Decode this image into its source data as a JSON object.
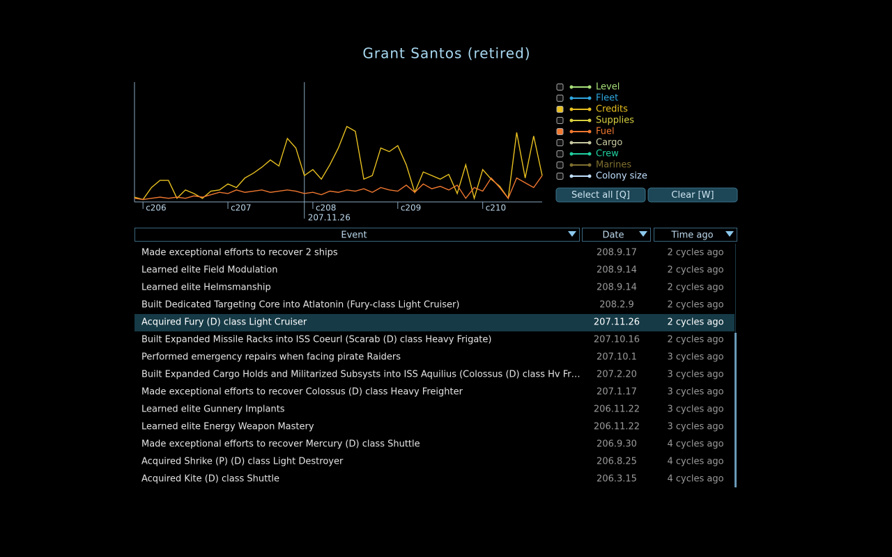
{
  "title": "Grant Santos (retired)",
  "chart_data": {
    "type": "line",
    "x": [
      205.9,
      206.0,
      206.1,
      206.2,
      206.3,
      206.4,
      206.5,
      206.6,
      206.7,
      206.8,
      206.9,
      207.0,
      207.1,
      207.2,
      207.3,
      207.4,
      207.5,
      207.6,
      207.7,
      207.8,
      207.9,
      208.0,
      208.1,
      208.2,
      208.3,
      208.4,
      208.5,
      208.6,
      208.7,
      208.8,
      208.9,
      209.0,
      209.1,
      209.2,
      209.3,
      209.4,
      209.5,
      209.6,
      209.7,
      209.8,
      209.9,
      210.0,
      210.1,
      210.2,
      210.3,
      210.4,
      210.5,
      210.6,
      210.7
    ],
    "xlim": [
      205.9,
      210.7
    ],
    "ylim": [
      0,
      100
    ],
    "xticks": [
      {
        "value": 206,
        "label": "c206"
      },
      {
        "value": 207,
        "label": "c207"
      },
      {
        "value": 208,
        "label": "c208"
      },
      {
        "value": 209,
        "label": "c209"
      },
      {
        "value": 210,
        "label": "c210"
      }
    ],
    "cursor": {
      "value": 207.9,
      "label": "207.11.26"
    },
    "series": [
      {
        "name": "Level",
        "color": "#a8e07a",
        "checked": false
      },
      {
        "name": "Fleet",
        "color": "#2fa8e0",
        "checked": false
      },
      {
        "name": "Credits",
        "color": "#e8c020",
        "checked": true,
        "values": [
          4,
          2,
          12,
          18,
          18,
          3,
          10,
          7,
          3,
          9,
          10,
          15,
          12,
          20,
          24,
          29,
          35,
          30,
          53,
          45,
          22,
          27,
          19,
          31,
          45,
          63,
          59,
          19,
          22,
          45,
          42,
          47,
          31,
          8,
          25,
          22,
          19,
          23,
          7,
          31,
          3,
          27,
          19,
          13,
          3,
          58,
          20,
          55,
          22
        ]
      },
      {
        "name": "Supplies",
        "color": "#d8d040",
        "checked": false
      },
      {
        "name": "Fuel",
        "color": "#f07830",
        "checked": true,
        "values": [
          3,
          2,
          3,
          4,
          3,
          4,
          3,
          5,
          4,
          6,
          8,
          7,
          10,
          8,
          9,
          10,
          8,
          9,
          10,
          9,
          7,
          8,
          6,
          9,
          8,
          10,
          9,
          11,
          8,
          12,
          10,
          9,
          14,
          8,
          15,
          11,
          13,
          10,
          14,
          3,
          12,
          9,
          20,
          12,
          3,
          20,
          16,
          12,
          22
        ]
      },
      {
        "name": "Cargo",
        "color": "#c8c8a0",
        "checked": false
      },
      {
        "name": "Crew",
        "color": "#20d0a0",
        "checked": false
      },
      {
        "name": "Marines",
        "color": "#807030",
        "checked": false
      },
      {
        "name": "Colony size",
        "color": "#c0e0ff",
        "checked": false
      }
    ]
  },
  "buttons": [
    "Select all [Q]",
    "Clear [W]"
  ],
  "table": {
    "columns": [
      "Event",
      "Date",
      "Time ago"
    ],
    "selected": 4,
    "rows": [
      [
        "Made exceptional efforts to recover 2 ships",
        "208.9.17",
        "2 cycles ago"
      ],
      [
        "Learned elite Field Modulation",
        "208.9.14",
        "2 cycles ago"
      ],
      [
        "Learned elite Helmsmanship",
        "208.9.14",
        "2 cycles ago"
      ],
      [
        "Built Dedicated Targeting Core into Atlatonin (Fury-class Light Cruiser)",
        "208.2.9",
        "2 cycles ago"
      ],
      [
        "Acquired Fury (D) class Light Cruiser",
        "207.11.26",
        "2 cycles ago"
      ],
      [
        "Built Expanded Missile Racks into ISS Coeurl (Scarab (D) class Heavy Frigate)",
        "207.10.16",
        "2 cycles ago"
      ],
      [
        "Performed emergency repairs when facing pirate Raiders",
        "207.10.1",
        "3 cycles ago"
      ],
      [
        "Built Expanded Cargo Holds and Militarized Subsysts into ISS Aquilius (Colossus (D) class Hv Fr…",
        "207.2.20",
        "3 cycles ago"
      ],
      [
        "Made exceptional efforts to recover Colossus (D) class Heavy Freighter",
        "207.1.17",
        "3 cycles ago"
      ],
      [
        "Learned elite Gunnery Implants",
        "206.11.22",
        "3 cycles ago"
      ],
      [
        "Learned elite Energy Weapon Mastery",
        "206.11.22",
        "3 cycles ago"
      ],
      [
        "Made exceptional efforts to recover Mercury (D) class Shuttle",
        "206.9.30",
        "4 cycles ago"
      ],
      [
        "Acquired Shrike (P) (D) class Light Destroyer",
        "206.8.25",
        "4 cycles ago"
      ],
      [
        "Acquired Kite (D) class Shuttle",
        "206.3.15",
        "4 cycles ago"
      ]
    ]
  }
}
